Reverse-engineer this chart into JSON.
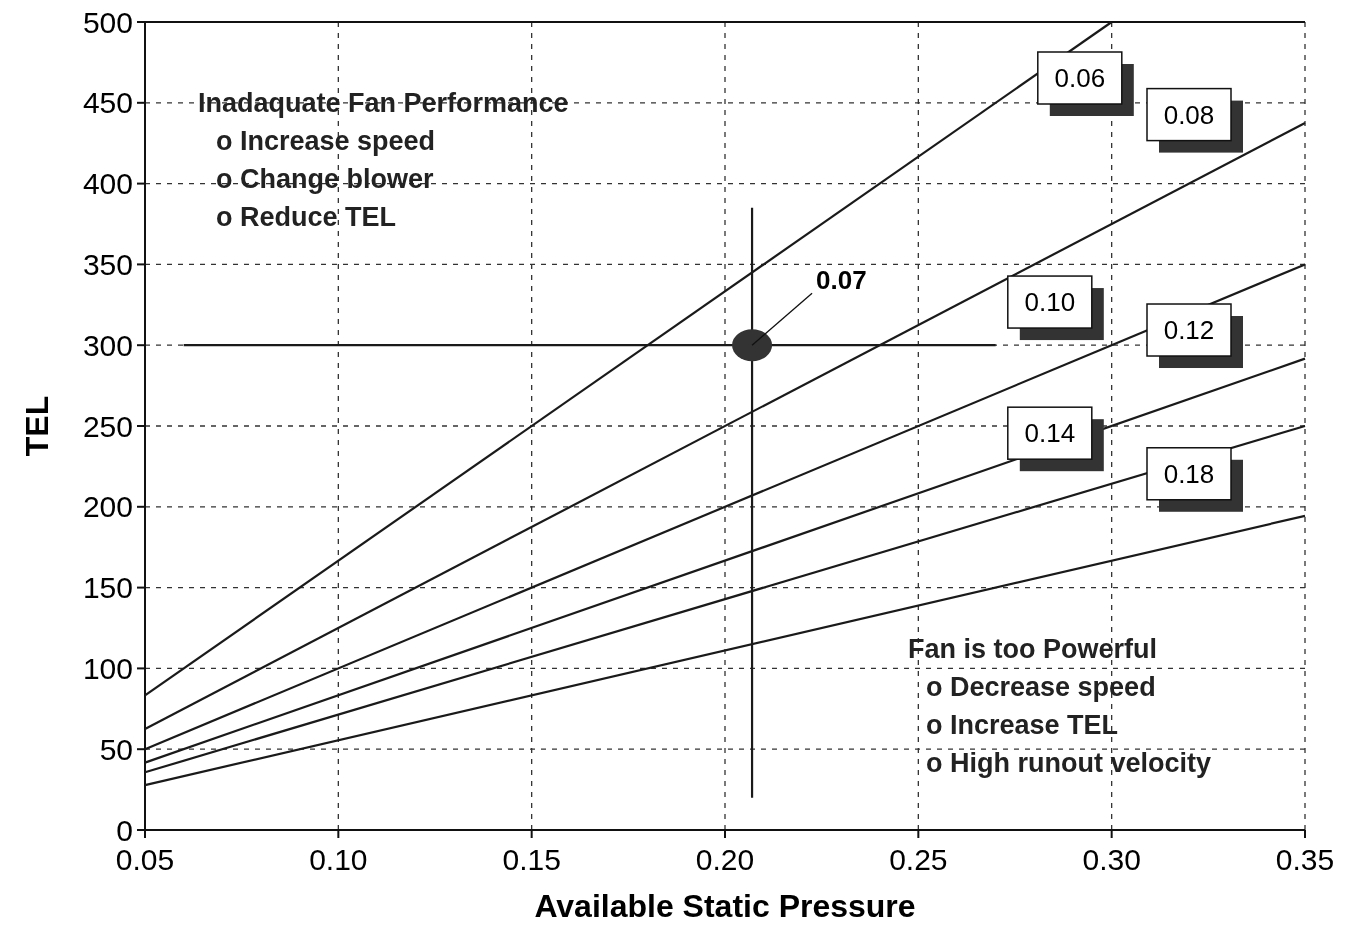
{
  "chart_data": {
    "type": "line",
    "xlabel": "Available Static Pressure",
    "ylabel": "TEL",
    "x": [
      0.05,
      0.35
    ],
    "series": [
      {
        "name": "0.06",
        "color": "#1a1a1a",
        "x": [
          0.05,
          0.3
        ],
        "values": [
          83.3,
          500
        ]
      },
      {
        "name": "0.08",
        "color": "#1a1a1a",
        "values": [
          62.5,
          437.5
        ]
      },
      {
        "name": "0.10",
        "color": "#1a1a1a",
        "values": [
          50,
          350
        ]
      },
      {
        "name": "0.12",
        "color": "#1a1a1a",
        "values": [
          41.7,
          291.7
        ]
      },
      {
        "name": "0.14",
        "color": "#1a1a1a",
        "values": [
          35.7,
          250
        ]
      },
      {
        "name": "0.18",
        "color": "#1a1a1a",
        "values": [
          27.8,
          194.4
        ]
      },
      {
        "color": "#1a1a1a",
        "x": [
          0.06,
          0.27
        ],
        "values": [
          300,
          300
        ]
      },
      {
        "color": "#1a1a1a",
        "x": [
          0.207,
          0.207
        ],
        "values": [
          385,
          20
        ]
      },
      {
        "type": "scatter",
        "color": "#333333",
        "x": [
          0.207
        ],
        "values": [
          300
        ],
        "marker": "circle"
      }
    ],
    "annotations": [
      {
        "text": "0.07",
        "x": 0.207,
        "y": 300
      },
      "Inadaquate Fan Performance\no Increase speed\no Change blower\no Reduce TEL",
      "Fan is too Powerful\no Decrease speed\no Increase TEL\no High runout velocity"
    ],
    "xlim": [
      0.05,
      0.35
    ],
    "xticks": [
      {
        "value": 0.05,
        "label": "0.05"
      },
      {
        "value": 0.1,
        "label": "0.10"
      },
      {
        "value": 0.15,
        "label": "0.15"
      },
      {
        "value": 0.2,
        "label": "0.20"
      },
      {
        "value": 0.25,
        "label": "0.25"
      },
      {
        "value": 0.3,
        "label": "0.30"
      },
      {
        "value": 0.35,
        "label": "0.35"
      }
    ],
    "ylim": [
      0,
      500
    ],
    "yticks": [
      0,
      50,
      100,
      150,
      200,
      250,
      300,
      350,
      400,
      450,
      500
    ],
    "grid": true,
    "line_style": "solid"
  }
}
